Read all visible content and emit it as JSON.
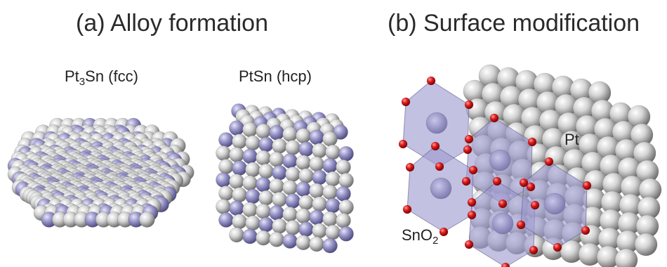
{
  "panels": {
    "a": {
      "title": "(a) Alloy formation",
      "clusters": [
        {
          "formula_main": "Pt",
          "formula_sub": "3",
          "formula_end": "Sn",
          "structure": " (fcc)"
        },
        {
          "formula_main": "PtSn",
          "structure": " (hcp)"
        }
      ]
    },
    "b": {
      "title": "(b) Surface modification",
      "surface_label": "Pt",
      "oxide_main": "SnO",
      "oxide_sub": "2"
    }
  },
  "colors": {
    "pt_atom": "#c9c9c9",
    "sn_atom": "#9b98c8",
    "oxygen_atom": "#d51818",
    "octahedron": "#9e9bd0"
  }
}
